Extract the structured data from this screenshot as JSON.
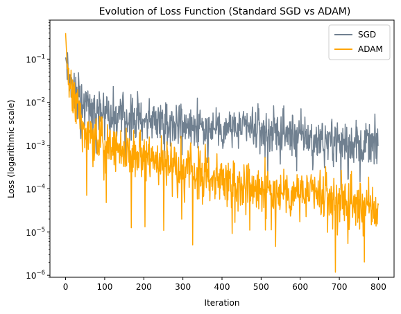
{
  "chart_data": {
    "type": "line",
    "title": "Evolution of Loss Function (Standard SGD vs ADAM)",
    "xlabel": "Iteration",
    "ylabel": "Loss (logarithmic scale)",
    "xlim": [
      -40,
      840
    ],
    "ylim": [
      9e-07,
      0.8
    ],
    "yscale": "log",
    "xticks": [
      0,
      100,
      200,
      300,
      400,
      500,
      600,
      700,
      800
    ],
    "xtick_labels": [
      "0",
      "100",
      "200",
      "300",
      "400",
      "500",
      "600",
      "700",
      "800"
    ],
    "yticks": [
      1e-06,
      1e-05,
      0.0001,
      0.001,
      0.01,
      0.1
    ],
    "ytick_labels": [
      {
        "base": "10",
        "exp": "−6"
      },
      {
        "base": "10",
        "exp": "−5"
      },
      {
        "base": "10",
        "exp": "−4"
      },
      {
        "base": "10",
        "exp": "−3"
      },
      {
        "base": "10",
        "exp": "−2"
      },
      {
        "base": "10",
        "exp": "−1"
      }
    ],
    "legend_position": "top-right",
    "grid": false,
    "series": [
      {
        "name": "SGD",
        "color": "#708090",
        "x": [
          0,
          10,
          20,
          30,
          40,
          50,
          60,
          70,
          80,
          90,
          100,
          120,
          140,
          160,
          180,
          200,
          220,
          240,
          260,
          280,
          300,
          320,
          340,
          360,
          380,
          400,
          420,
          440,
          460,
          480,
          500,
          520,
          540,
          560,
          580,
          600,
          620,
          640,
          660,
          680,
          700,
          720,
          740,
          760,
          780,
          800
        ],
        "y": [
          0.11,
          0.035,
          0.02,
          0.014,
          0.012,
          0.009,
          0.008,
          0.0075,
          0.007,
          0.0065,
          0.006,
          0.0055,
          0.005,
          0.0048,
          0.0046,
          0.0044,
          0.0042,
          0.004,
          0.0038,
          0.0036,
          0.0034,
          0.0032,
          0.003,
          0.0029,
          0.0028,
          0.0027,
          0.0026,
          0.0025,
          0.0024,
          0.0023,
          0.0022,
          0.0021,
          0.002,
          0.0019,
          0.0018,
          0.0017,
          0.0016,
          0.0015,
          0.0014,
          0.00135,
          0.0013,
          0.00125,
          0.0012,
          0.00115,
          0.0011,
          0.001
        ],
        "noise": 0.42,
        "spread": 0.9
      },
      {
        "name": "ADAM",
        "color": "#FFA500",
        "x": [
          0,
          5,
          10,
          20,
          30,
          40,
          50,
          60,
          80,
          100,
          120,
          140,
          160,
          180,
          200,
          220,
          240,
          260,
          280,
          300,
          320,
          340,
          360,
          380,
          400,
          420,
          440,
          460,
          480,
          500,
          520,
          540,
          560,
          580,
          600,
          620,
          640,
          660,
          680,
          700,
          720,
          740,
          760,
          780,
          800
        ],
        "y": [
          0.4,
          0.05,
          0.025,
          0.015,
          0.006,
          0.003,
          0.002,
          0.0018,
          0.0015,
          0.0012,
          0.001,
          0.0009,
          0.0008,
          0.0007,
          0.0006,
          0.0005,
          0.00045,
          0.0004,
          0.00035,
          0.0003,
          0.00028,
          0.00025,
          0.00022,
          0.0002,
          0.00018,
          0.00016,
          0.00014,
          0.00013,
          0.00012,
          0.00011,
          0.0001,
          9.5e-05,
          9e-05,
          8.5e-05,
          8e-05,
          7.5e-05,
          7e-05,
          6.5e-05,
          6e-05,
          5.5e-05,
          5e-05,
          4.5e-05,
          4e-05,
          3.5e-05,
          3e-05
        ],
        "noise": 0.48,
        "spread": 1.5
      }
    ]
  }
}
